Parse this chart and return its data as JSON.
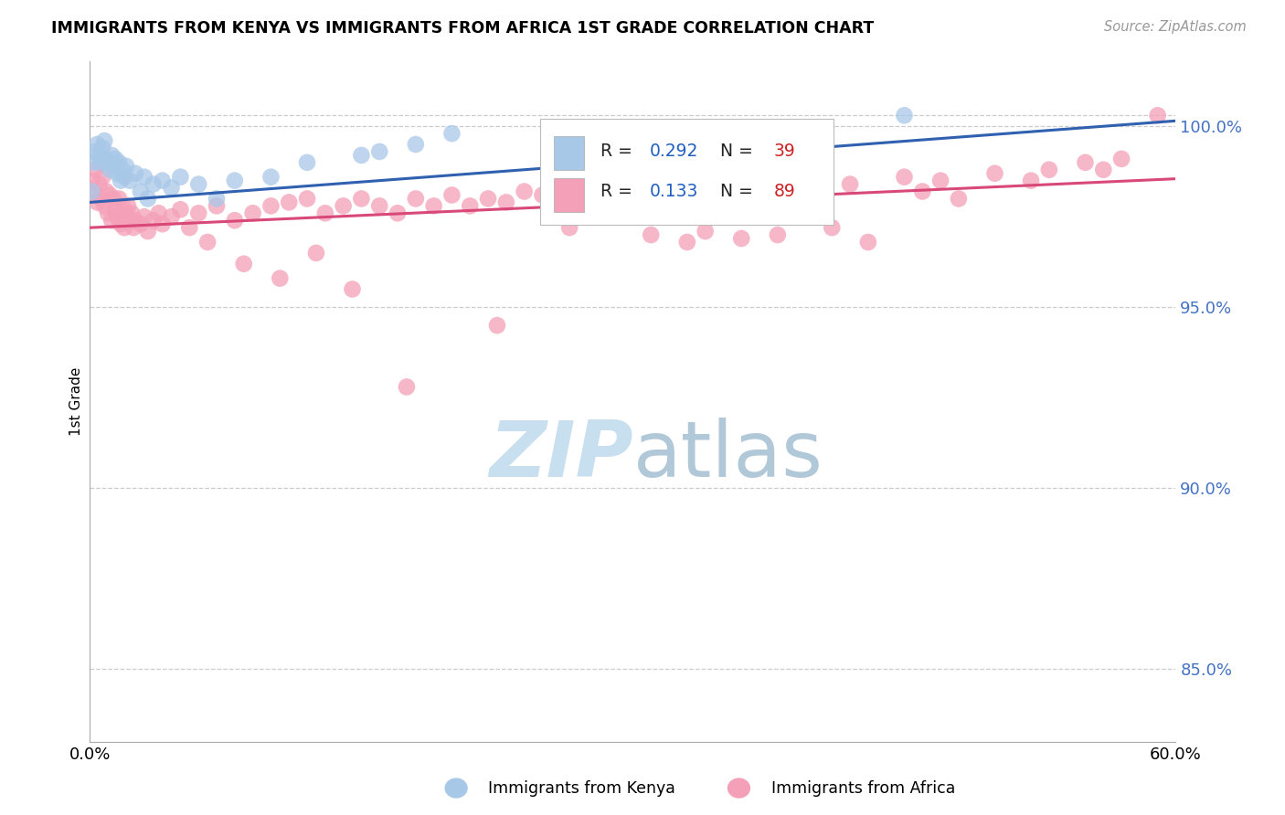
{
  "title": "IMMIGRANTS FROM KENYA VS IMMIGRANTS FROM AFRICA 1ST GRADE CORRELATION CHART",
  "source": "Source: ZipAtlas.com",
  "ylabel": "1st Grade",
  "x_min": 0.0,
  "x_max": 60.0,
  "y_min": 83.0,
  "y_max": 101.8,
  "y_ticks": [
    85.0,
    90.0,
    95.0,
    100.0
  ],
  "y_tick_labels": [
    "85.0%",
    "90.0%",
    "95.0%",
    "100.0%"
  ],
  "legend_kenya": "Immigrants from Kenya",
  "legend_africa": "Immigrants from Africa",
  "R_kenya": "0.292",
  "N_kenya": "39",
  "R_africa": "0.133",
  "N_africa": "89",
  "kenya_color": "#a8c8e8",
  "africa_color": "#f4a0b8",
  "kenya_line_color": "#3060b0",
  "africa_line_color": "#d84878",
  "watermark_color": "#c8dff0",
  "grid_color": "#cccccc",
  "tick_label_color": "#4472c4",
  "kenya_x": [
    0.1,
    0.2,
    0.3,
    0.4,
    0.5,
    0.6,
    0.7,
    0.8,
    0.9,
    1.0,
    1.1,
    1.2,
    1.3,
    1.4,
    1.5,
    1.6,
    1.7,
    1.8,
    1.9,
    2.0,
    2.2,
    2.5,
    2.8,
    3.0,
    3.2,
    3.5,
    4.0,
    4.5,
    5.0,
    6.0,
    7.0,
    8.0,
    10.0,
    12.0,
    15.0,
    16.0,
    18.0,
    20.0,
    45.0
  ],
  "kenya_y": [
    98.2,
    99.0,
    99.3,
    99.5,
    99.2,
    99.0,
    99.4,
    99.6,
    99.1,
    99.0,
    98.8,
    99.2,
    98.9,
    99.1,
    98.7,
    99.0,
    98.5,
    98.8,
    98.6,
    98.9,
    98.5,
    98.7,
    98.2,
    98.6,
    98.0,
    98.4,
    98.5,
    98.3,
    98.6,
    98.4,
    98.0,
    98.5,
    98.6,
    99.0,
    99.2,
    99.3,
    99.5,
    99.8,
    100.3
  ],
  "africa_x": [
    0.1,
    0.2,
    0.3,
    0.4,
    0.5,
    0.6,
    0.7,
    0.8,
    0.9,
    1.0,
    1.1,
    1.2,
    1.3,
    1.4,
    1.5,
    1.6,
    1.7,
    1.8,
    1.9,
    2.0,
    2.1,
    2.2,
    2.3,
    2.4,
    2.5,
    2.8,
    3.0,
    3.2,
    3.5,
    3.8,
    4.0,
    4.5,
    5.0,
    5.5,
    6.0,
    7.0,
    8.0,
    9.0,
    10.0,
    11.0,
    12.0,
    13.0,
    14.0,
    15.0,
    16.0,
    17.0,
    18.0,
    19.0,
    20.0,
    21.0,
    22.0,
    23.0,
    24.0,
    25.0,
    26.0,
    27.0,
    28.0,
    30.0,
    32.0,
    35.0,
    37.0,
    40.0,
    42.0,
    45.0,
    47.0,
    50.0,
    53.0,
    55.0,
    57.0,
    59.0,
    6.5,
    8.5,
    10.5,
    12.5,
    14.5,
    22.5,
    17.5,
    26.5,
    31.0,
    33.0,
    34.0,
    36.0,
    38.0,
    41.0,
    43.0,
    46.0,
    48.0,
    52.0,
    56.0
  ],
  "africa_y": [
    98.5,
    98.2,
    98.8,
    97.9,
    98.4,
    98.0,
    98.6,
    97.8,
    98.2,
    97.6,
    98.1,
    97.4,
    98.0,
    97.7,
    97.5,
    98.0,
    97.3,
    97.8,
    97.2,
    97.6,
    97.8,
    97.4,
    97.6,
    97.2,
    97.4,
    97.3,
    97.5,
    97.1,
    97.4,
    97.6,
    97.3,
    97.5,
    97.7,
    97.2,
    97.6,
    97.8,
    97.4,
    97.6,
    97.8,
    97.9,
    98.0,
    97.6,
    97.8,
    98.0,
    97.8,
    97.6,
    98.0,
    97.8,
    98.1,
    97.8,
    98.0,
    97.9,
    98.2,
    98.1,
    98.0,
    98.3,
    98.1,
    98.2,
    98.3,
    98.4,
    98.2,
    98.5,
    98.4,
    98.6,
    98.5,
    98.7,
    98.8,
    99.0,
    99.1,
    100.3,
    96.8,
    96.2,
    95.8,
    96.5,
    95.5,
    94.5,
    92.8,
    97.2,
    97.0,
    96.8,
    97.1,
    96.9,
    97.0,
    97.2,
    96.8,
    98.2,
    98.0,
    98.5,
    98.8
  ]
}
